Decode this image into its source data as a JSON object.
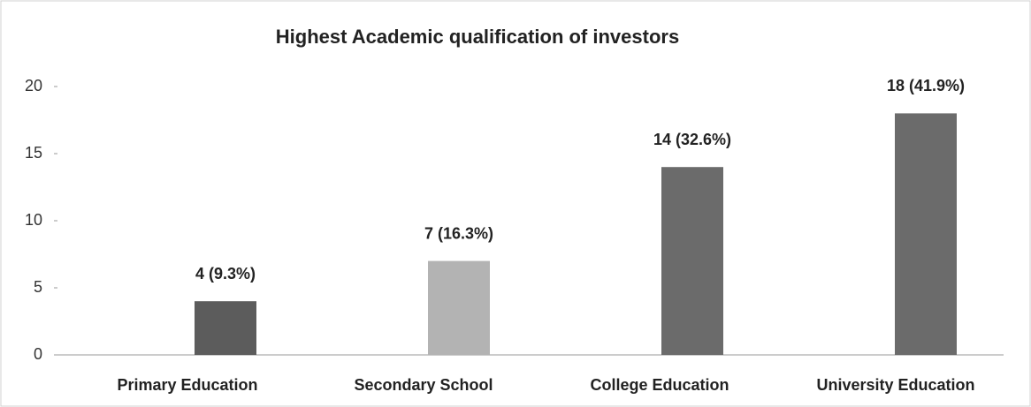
{
  "chart_data": {
    "type": "bar",
    "title": "Highest Academic qualification of investors",
    "categories": [
      "Primary Education",
      "Secondary School",
      "College Education",
      "University Education"
    ],
    "values": [
      4,
      7,
      14,
      18
    ],
    "value_labels": [
      "4 (9.3%)",
      "7 (16.3%)",
      "14 (32.6%)",
      "18 (41.9%)"
    ],
    "colors": [
      "#5c5c5c",
      "#b3b3b3",
      "#6b6b6b",
      "#6b6b6b"
    ],
    "ylim": [
      0,
      20
    ],
    "yticks": [
      0,
      5,
      10,
      15,
      20
    ],
    "grid": false
  }
}
